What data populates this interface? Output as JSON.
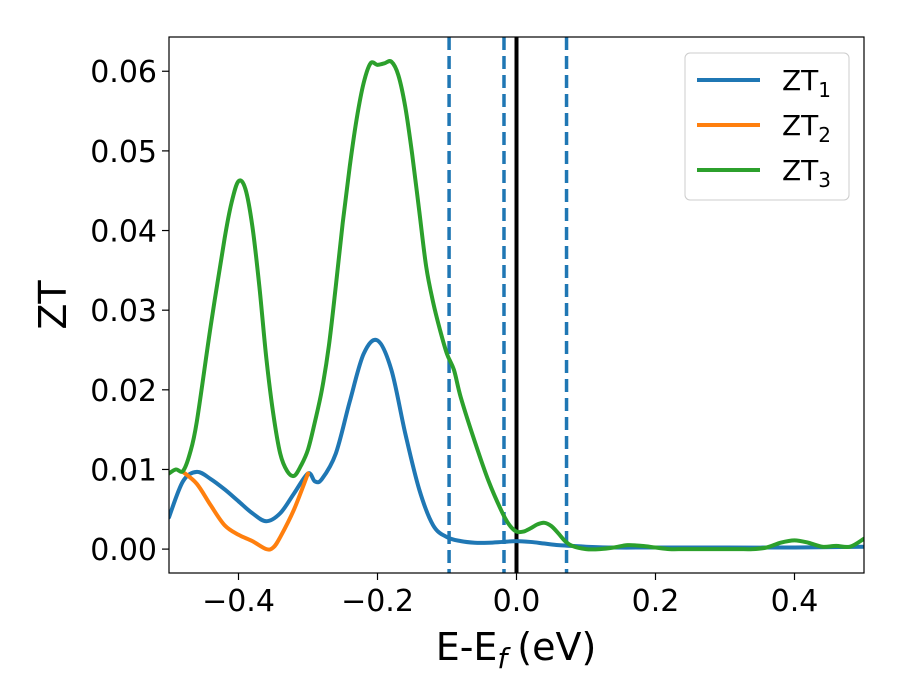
{
  "chart_data": {
    "type": "line",
    "xlabel": "E-E",
    "xlabel_sub": "f",
    "xlabel_unit": "(eV)",
    "ylabel": "ZT",
    "xlim": [
      -0.5,
      0.5
    ],
    "ylim": [
      -0.003,
      0.0643
    ],
    "xticks": [
      -0.4,
      -0.2,
      0.0,
      0.2,
      0.4
    ],
    "xtick_labels": [
      "−0.4",
      "−0.2",
      "0.0",
      "0.2",
      "0.4"
    ],
    "yticks": [
      0.0,
      0.01,
      0.02,
      0.03,
      0.04,
      0.05,
      0.06
    ],
    "ytick_labels": [
      "0.00",
      "0.01",
      "0.02",
      "0.03",
      "0.04",
      "0.05",
      "0.06"
    ],
    "grid": false,
    "legend_position": "top-right",
    "vlines": [
      {
        "x": -0.097,
        "style": "dashed",
        "color": "#1f77b4"
      },
      {
        "x": -0.018,
        "style": "dashed",
        "color": "#1f77b4"
      },
      {
        "x": 0.0,
        "style": "solid",
        "color": "#000000"
      },
      {
        "x": 0.072,
        "style": "dashed",
        "color": "#1f77b4"
      }
    ],
    "series": [
      {
        "name": "ZT",
        "name_sub": "1",
        "color": "#1f77b4",
        "x": [
          -0.5,
          -0.48,
          -0.46,
          -0.44,
          -0.42,
          -0.4,
          -0.38,
          -0.36,
          -0.34,
          -0.32,
          -0.3,
          -0.29,
          -0.28,
          -0.26,
          -0.24,
          -0.22,
          -0.2,
          -0.18,
          -0.16,
          -0.14,
          -0.12,
          -0.1,
          -0.08,
          -0.06,
          -0.04,
          -0.02,
          0.0,
          0.02,
          0.04,
          0.06,
          0.08,
          0.1,
          0.14,
          0.2,
          0.3,
          0.4,
          0.5
        ],
        "y": [
          0.004,
          0.0085,
          0.0097,
          0.0088,
          0.0075,
          0.006,
          0.0045,
          0.0035,
          0.0045,
          0.007,
          0.0095,
          0.0085,
          0.0088,
          0.012,
          0.0185,
          0.0245,
          0.0262,
          0.0225,
          0.0145,
          0.0075,
          0.003,
          0.0015,
          0.001,
          0.0008,
          0.0008,
          0.0009,
          0.001,
          0.0009,
          0.0007,
          0.0005,
          0.0004,
          0.0003,
          0.0002,
          0.0002,
          0.0002,
          0.0002,
          0.0003
        ]
      },
      {
        "name": "ZT",
        "name_sub": "2",
        "color": "#ff7f0e",
        "x": [
          -0.48,
          -0.46,
          -0.44,
          -0.42,
          -0.4,
          -0.38,
          -0.36,
          -0.35,
          -0.34,
          -0.32,
          -0.3
        ],
        "y": [
          0.0097,
          0.0082,
          0.0055,
          0.003,
          0.0018,
          0.001,
          0.0,
          0.0002,
          0.0015,
          0.005,
          0.0095
        ]
      },
      {
        "name": "ZT",
        "name_sub": "3",
        "color": "#2ca02c",
        "x": [
          -0.5,
          -0.49,
          -0.48,
          -0.47,
          -0.46,
          -0.44,
          -0.42,
          -0.41,
          -0.4,
          -0.39,
          -0.38,
          -0.37,
          -0.36,
          -0.35,
          -0.34,
          -0.33,
          -0.32,
          -0.31,
          -0.3,
          -0.29,
          -0.28,
          -0.27,
          -0.26,
          -0.25,
          -0.24,
          -0.23,
          -0.22,
          -0.21,
          -0.2,
          -0.19,
          -0.18,
          -0.17,
          -0.16,
          -0.15,
          -0.14,
          -0.13,
          -0.12,
          -0.11,
          -0.1,
          -0.09,
          -0.08,
          -0.06,
          -0.04,
          -0.02,
          -0.01,
          0.0,
          0.01,
          0.02,
          0.03,
          0.04,
          0.05,
          0.06,
          0.07,
          0.08,
          0.1,
          0.12,
          0.14,
          0.16,
          0.18,
          0.2,
          0.22,
          0.24,
          0.26,
          0.28,
          0.3,
          0.32,
          0.34,
          0.36,
          0.38,
          0.4,
          0.42,
          0.44,
          0.46,
          0.48,
          0.5
        ],
        "y": [
          0.0095,
          0.01,
          0.0098,
          0.012,
          0.016,
          0.028,
          0.039,
          0.0435,
          0.0462,
          0.0452,
          0.0405,
          0.033,
          0.024,
          0.017,
          0.012,
          0.0098,
          0.0092,
          0.0105,
          0.0125,
          0.016,
          0.02,
          0.0255,
          0.033,
          0.041,
          0.048,
          0.054,
          0.0585,
          0.061,
          0.0608,
          0.061,
          0.0612,
          0.0595,
          0.0555,
          0.0495,
          0.0425,
          0.0355,
          0.031,
          0.0275,
          0.0245,
          0.0225,
          0.019,
          0.0135,
          0.0085,
          0.0045,
          0.003,
          0.0022,
          0.0022,
          0.0026,
          0.0031,
          0.0033,
          0.0029,
          0.002,
          0.001,
          0.0004,
          0.0,
          0.0,
          0.0002,
          0.0005,
          0.0004,
          0.0002,
          0.0,
          0.0,
          0.0,
          0.0,
          0.0,
          0.0,
          0.0,
          0.0002,
          0.0008,
          0.0011,
          0.0008,
          0.0003,
          0.0004,
          0.0003,
          0.0013
        ]
      }
    ]
  }
}
